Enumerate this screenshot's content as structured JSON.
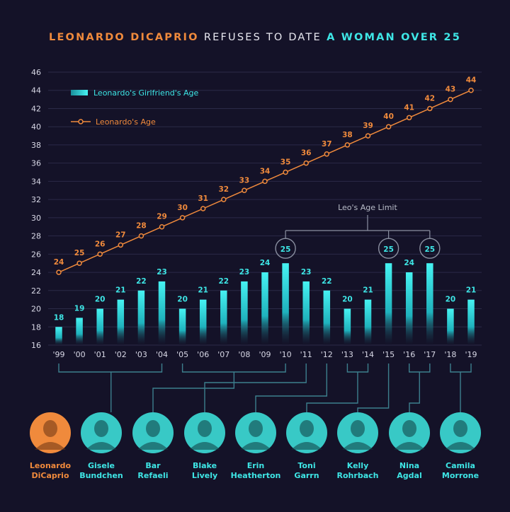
{
  "title": {
    "part1": "LEONARDO DICAPRIO",
    "part2": "REFUSES TO DATE",
    "part3": "A WOMAN OVER 25"
  },
  "colors": {
    "background": "#141228",
    "orange": "#f08a3c",
    "cyan": "#3ee6e6",
    "grid": "#2b2a47",
    "axis_text": "#d8d8e6",
    "connector": "#3d7f8e",
    "limit_gray": "#8a8fa0"
  },
  "chart_data": {
    "type": "bar",
    "categories": [
      "'99",
      "'00",
      "'01",
      "'02",
      "'03",
      "'04",
      "'05",
      "'06",
      "'07",
      "'08",
      "'09",
      "'10",
      "'11",
      "'12",
      "'13",
      "'14",
      "'15",
      "'16",
      "'17",
      "'18",
      "'19"
    ],
    "ylim": [
      16,
      46
    ],
    "yticks": [
      16,
      18,
      20,
      22,
      24,
      26,
      28,
      30,
      32,
      34,
      36,
      38,
      40,
      42,
      44,
      46
    ],
    "grid": true,
    "legend_position": "top-left",
    "series": [
      {
        "name": "Leonardo's Girlfriend's Age",
        "type": "bar",
        "values": [
          18,
          19,
          20,
          21,
          22,
          23,
          20,
          21,
          22,
          23,
          24,
          25,
          23,
          22,
          20,
          21,
          25,
          24,
          25,
          20,
          21
        ]
      },
      {
        "name": "Leonardo's Age",
        "type": "line",
        "values": [
          24,
          25,
          26,
          27,
          28,
          29,
          30,
          31,
          32,
          33,
          34,
          35,
          36,
          37,
          38,
          39,
          40,
          41,
          42,
          43,
          44
        ]
      }
    ],
    "annotation": {
      "label": "Leo's Age Limit",
      "years": [
        "'10",
        "'15",
        "'17"
      ],
      "value": 25
    }
  },
  "people": [
    {
      "name_line1": "Leonardo",
      "name_line2": "DiCaprio",
      "highlight": true
    },
    {
      "name_line1": "Gisele",
      "name_line2": "Bundchen",
      "highlight": false,
      "years": [
        "'99",
        "'04"
      ]
    },
    {
      "name_line1": "Bar",
      "name_line2": "Refaeli",
      "highlight": false,
      "years": [
        "'05",
        "'10"
      ]
    },
    {
      "name_line1": "Blake",
      "name_line2": "Lively",
      "highlight": false,
      "years": [
        "'11"
      ]
    },
    {
      "name_line1": "Erin",
      "name_line2": "Heatherton",
      "highlight": false,
      "years": [
        "'12"
      ]
    },
    {
      "name_line1": "Toni",
      "name_line2": "Garrn",
      "highlight": false,
      "years": [
        "'13",
        "'14"
      ]
    },
    {
      "name_line1": "Kelly",
      "name_line2": "Rohrbach",
      "highlight": false,
      "years": [
        "'15"
      ]
    },
    {
      "name_line1": "Nina",
      "name_line2": "Agdal",
      "highlight": false,
      "years": [
        "'16",
        "'17"
      ]
    },
    {
      "name_line1": "Camila",
      "name_line2": "Morrone",
      "highlight": false,
      "years": [
        "'18",
        "'19"
      ]
    }
  ]
}
